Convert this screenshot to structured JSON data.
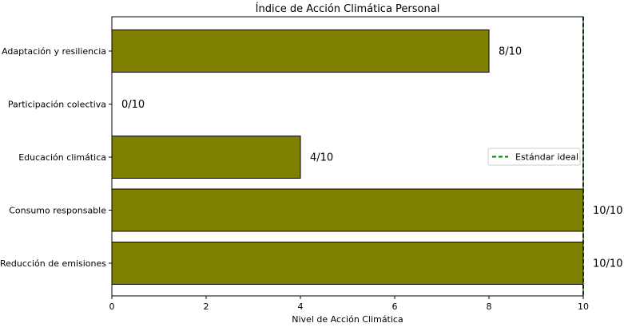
{
  "chart_data": {
    "type": "bar",
    "orientation": "horizontal",
    "title": "Índice de Acción Climática Personal",
    "xlabel": "Nivel de Acción Climática",
    "ylabel": "",
    "xlim": [
      0,
      10
    ],
    "xticks": [
      0,
      2,
      4,
      6,
      8,
      10
    ],
    "categories": [
      "Adaptación y resiliencia",
      "Participación colectiva",
      "Educación climática",
      "Consumo responsable",
      "Reducción de emisiones"
    ],
    "values": [
      8,
      0,
      4,
      10,
      10
    ],
    "value_labels": [
      "8/10",
      "0/10",
      "4/10",
      "10/10",
      "10/10"
    ],
    "bar_color": "#808000",
    "bar_edge_color": "#000000",
    "reference_line": {
      "label": "Estándar ideal",
      "value": 10,
      "color": "#008000",
      "style": "dashed"
    },
    "legend": {
      "position": "center-right",
      "entries": [
        "Estándar ideal"
      ]
    },
    "grid": false
  }
}
